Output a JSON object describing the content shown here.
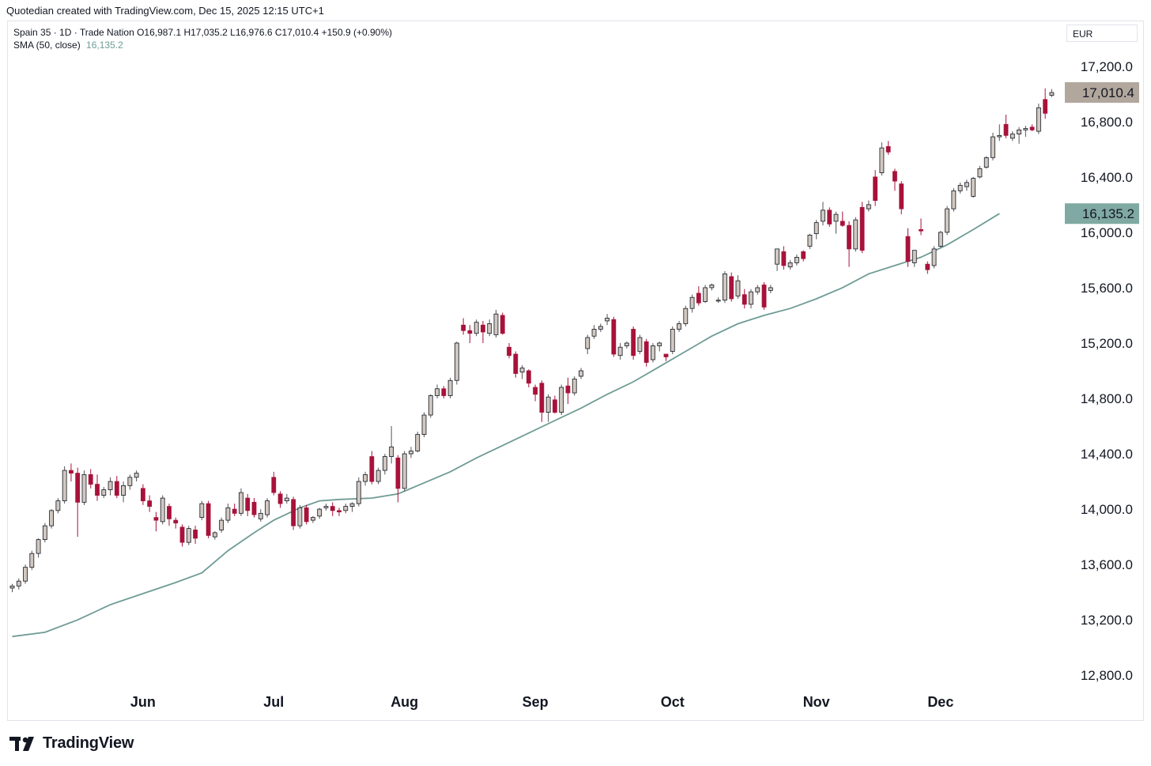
{
  "header": {
    "attribution": "Quotedian created with TradingView.com, Dec 15, 2025 12:15 UTC+1"
  },
  "legend": {
    "symbol_line": "Spain 35 · 1D · Trade Nation  O16,987.1  H17,035.2  L16,976.6  C17,010.4  +150.9 (+0.90%)",
    "sma_label": "SMA (50, close)",
    "sma_value": "16,135.2"
  },
  "currency": "EUR",
  "footer": {
    "brand": "TradingView"
  },
  "colors": {
    "up_body": "#d1c8c0",
    "down_body": "#a8123a",
    "sma": "#6f9b95",
    "last_label_bg": "#b2a79d",
    "sma_label_bg": "#7fa9a2"
  },
  "chart_data": {
    "type": "candlestick",
    "title": "Spain 35 · 1D",
    "ylim": [
      12550,
      17530
    ],
    "y_ticks": [
      17200,
      16800,
      16400,
      16000,
      15600,
      15200,
      14800,
      14400,
      14000,
      13600,
      13200,
      12800
    ],
    "y_tick_labels": [
      "17,200.0",
      "16,800.0",
      "16,400.0",
      "16,000.0",
      "15,600.0",
      "15,200.0",
      "14,800.0",
      "14,400.0",
      "14,000.0",
      "13,600.0",
      "13,200.0",
      "12,800.0"
    ],
    "x_labels": [
      {
        "label": "Jun",
        "bar": 20
      },
      {
        "label": "Jul",
        "bar": 40
      },
      {
        "label": "Aug",
        "bar": 60
      },
      {
        "label": "Sep",
        "bar": 80
      },
      {
        "label": "Oct",
        "bar": 101
      },
      {
        "label": "Nov",
        "bar": 123
      },
      {
        "label": "Dec",
        "bar": 142
      }
    ],
    "candles": [
      [
        13430,
        13460,
        13400,
        13445
      ],
      [
        13445,
        13500,
        13420,
        13480
      ],
      [
        13480,
        13600,
        13460,
        13580
      ],
      [
        13580,
        13700,
        13560,
        13680
      ],
      [
        13680,
        13790,
        13650,
        13780
      ],
      [
        13780,
        13900,
        13760,
        13880
      ],
      [
        13880,
        14000,
        13860,
        13990
      ],
      [
        13990,
        14080,
        13970,
        14060
      ],
      [
        14060,
        14310,
        14040,
        14280
      ],
      [
        14280,
        14330,
        14200,
        14260
      ],
      [
        14260,
        14300,
        13800,
        14050
      ],
      [
        14050,
        14280,
        14030,
        14250
      ],
      [
        14250,
        14290,
        14150,
        14180
      ],
      [
        14180,
        14250,
        14060,
        14100
      ],
      [
        14100,
        14160,
        14080,
        14140
      ],
      [
        14140,
        14230,
        14100,
        14200
      ],
      [
        14200,
        14240,
        14080,
        14100
      ],
      [
        14100,
        14200,
        14050,
        14170
      ],
      [
        14170,
        14250,
        14140,
        14230
      ],
      [
        14230,
        14280,
        14200,
        14260
      ],
      [
        14150,
        14180,
        14030,
        14060
      ],
      [
        14060,
        14100,
        13980,
        14020
      ],
      [
        13940,
        13980,
        13840,
        13920
      ],
      [
        13910,
        14100,
        13890,
        14080
      ],
      [
        14020,
        14040,
        13880,
        13930
      ],
      [
        13920,
        13940,
        13860,
        13900
      ],
      [
        13870,
        13890,
        13730,
        13760
      ],
      [
        13760,
        13880,
        13740,
        13860
      ],
      [
        13850,
        13880,
        13750,
        13790
      ],
      [
        13940,
        14060,
        13920,
        14040
      ],
      [
        14040,
        14060,
        13790,
        13810
      ],
      [
        13800,
        13840,
        13780,
        13830
      ],
      [
        13850,
        13940,
        13830,
        13920
      ],
      [
        13920,
        14040,
        13900,
        14010
      ],
      [
        14000,
        14040,
        13950,
        13970
      ],
      [
        13970,
        14150,
        13950,
        14120
      ],
      [
        14080,
        14110,
        13950,
        13990
      ],
      [
        14050,
        14080,
        13940,
        13960
      ],
      [
        13930,
        14000,
        13910,
        13970
      ],
      [
        13960,
        14080,
        13940,
        14060
      ],
      [
        14230,
        14270,
        14100,
        14120
      ],
      [
        14110,
        14130,
        14010,
        14040
      ],
      [
        14060,
        14110,
        14040,
        14080
      ],
      [
        14070,
        14090,
        13850,
        13880
      ],
      [
        13880,
        14030,
        13860,
        14010
      ],
      [
        14010,
        14030,
        13890,
        13910
      ],
      [
        13920,
        13950,
        13900,
        13940
      ],
      [
        13950,
        14010,
        13930,
        14000
      ],
      [
        14010,
        14040,
        13990,
        14020
      ],
      [
        14020,
        14050,
        13950,
        13990
      ],
      [
        13990,
        14010,
        13950,
        13980
      ],
      [
        13990,
        14040,
        13970,
        14020
      ],
      [
        14020,
        14050,
        13980,
        14040
      ],
      [
        14040,
        14230,
        14020,
        14200
      ],
      [
        14200,
        14270,
        14170,
        14250
      ],
      [
        14380,
        14420,
        14180,
        14200
      ],
      [
        14200,
        14300,
        14180,
        14280
      ],
      [
        14280,
        14400,
        14250,
        14380
      ],
      [
        14380,
        14600,
        14330,
        14450
      ],
      [
        14370,
        14390,
        14050,
        14150
      ],
      [
        14150,
        14420,
        14130,
        14400
      ],
      [
        14400,
        14450,
        14370,
        14420
      ],
      [
        14420,
        14560,
        14410,
        14540
      ],
      [
        14540,
        14700,
        14520,
        14680
      ],
      [
        14680,
        14830,
        14660,
        14820
      ],
      [
        14820,
        14900,
        14800,
        14870
      ],
      [
        14870,
        14890,
        14800,
        14820
      ],
      [
        14820,
        14950,
        14800,
        14930
      ],
      [
        14930,
        15210,
        14900,
        15200
      ],
      [
        15330,
        15380,
        15260,
        15290
      ],
      [
        15290,
        15330,
        15200,
        15270
      ],
      [
        15270,
        15370,
        15250,
        15350
      ],
      [
        15330,
        15360,
        15200,
        15280
      ],
      [
        15270,
        15370,
        15250,
        15340
      ],
      [
        15260,
        15440,
        15240,
        15410
      ],
      [
        15400,
        15420,
        15260,
        15270
      ],
      [
        15170,
        15200,
        15090,
        15110
      ],
      [
        15120,
        15140,
        14950,
        14980
      ],
      [
        14990,
        15040,
        14940,
        15020
      ],
      [
        15000,
        15010,
        14880,
        14910
      ],
      [
        14880,
        14900,
        14780,
        14830
      ],
      [
        14910,
        14930,
        14630,
        14700
      ],
      [
        14700,
        14830,
        14630,
        14810
      ],
      [
        14790,
        14820,
        14690,
        14700
      ],
      [
        14700,
        14900,
        14680,
        14880
      ],
      [
        14890,
        14950,
        14760,
        14840
      ],
      [
        14840,
        14960,
        14820,
        14940
      ],
      [
        14960,
        15020,
        14940,
        15000
      ],
      [
        15160,
        15260,
        15120,
        15240
      ],
      [
        15250,
        15330,
        15230,
        15300
      ],
      [
        15300,
        15340,
        15280,
        15320
      ],
      [
        15360,
        15410,
        15330,
        15380
      ],
      [
        15370,
        15390,
        15100,
        15120
      ],
      [
        15110,
        15200,
        15080,
        15170
      ],
      [
        15180,
        15210,
        15160,
        15200
      ],
      [
        15300,
        15320,
        15080,
        15110
      ],
      [
        15140,
        15260,
        15120,
        15240
      ],
      [
        15210,
        15230,
        15030,
        15060
      ],
      [
        15080,
        15200,
        15060,
        15180
      ],
      [
        15180,
        15210,
        15140,
        15200
      ],
      [
        15120,
        15120,
        15070,
        15100
      ],
      [
        15140,
        15320,
        15120,
        15300
      ],
      [
        15300,
        15360,
        15280,
        15340
      ],
      [
        15340,
        15470,
        15320,
        15450
      ],
      [
        15450,
        15550,
        15420,
        15530
      ],
      [
        15560,
        15610,
        15470,
        15490
      ],
      [
        15500,
        15620,
        15490,
        15600
      ],
      [
        15600,
        15630,
        15580,
        15620
      ],
      [
        15510,
        15530,
        15490,
        15510
      ],
      [
        15510,
        15720,
        15490,
        15700
      ],
      [
        15680,
        15710,
        15500,
        15520
      ],
      [
        15540,
        15690,
        15520,
        15650
      ],
      [
        15550,
        15590,
        15450,
        15480
      ],
      [
        15480,
        15590,
        15450,
        15570
      ],
      [
        15570,
        15620,
        15550,
        15600
      ],
      [
        15620,
        15640,
        15440,
        15460
      ],
      [
        15580,
        15620,
        15560,
        15600
      ],
      [
        15770,
        15880,
        15720,
        15880
      ],
      [
        15860,
        15900,
        15730,
        15760
      ],
      [
        15750,
        15800,
        15730,
        15780
      ],
      [
        15780,
        15840,
        15760,
        15820
      ],
      [
        15860,
        15870,
        15790,
        15810
      ],
      [
        15900,
        15990,
        15880,
        15980
      ],
      [
        15990,
        16090,
        15950,
        16070
      ],
      [
        16080,
        16220,
        16050,
        16160
      ],
      [
        16160,
        16180,
        16040,
        16060
      ],
      [
        16080,
        16150,
        15990,
        16130
      ],
      [
        16080,
        16150,
        16040,
        16050
      ],
      [
        16050,
        16080,
        15750,
        15880
      ],
      [
        15880,
        16110,
        15860,
        16090
      ],
      [
        16180,
        16220,
        15850,
        15870
      ],
      [
        16170,
        16230,
        16150,
        16200
      ],
      [
        16400,
        16450,
        16190,
        16230
      ],
      [
        16430,
        16650,
        16410,
        16610
      ],
      [
        16620,
        16660,
        16560,
        16580
      ],
      [
        16440,
        16460,
        16300,
        16370
      ],
      [
        16350,
        16370,
        16130,
        16170
      ],
      [
        15970,
        16030,
        15750,
        15790
      ],
      [
        15780,
        15870,
        15750,
        15870
      ],
      [
        16020,
        16100,
        15980,
        16010
      ],
      [
        15770,
        15790,
        15700,
        15730
      ],
      [
        15760,
        15900,
        15740,
        15880
      ],
      [
        15900,
        16010,
        15890,
        16000
      ],
      [
        16000,
        16190,
        15980,
        16170
      ],
      [
        16170,
        16320,
        16150,
        16300
      ],
      [
        16300,
        16360,
        16280,
        16340
      ],
      [
        16330,
        16380,
        16300,
        16360
      ],
      [
        16260,
        16400,
        16250,
        16390
      ],
      [
        16400,
        16480,
        16390,
        16460
      ],
      [
        16470,
        16550,
        16460,
        16540
      ],
      [
        16540,
        16720,
        16520,
        16690
      ],
      [
        16690,
        16780,
        16660,
        16700
      ],
      [
        16780,
        16850,
        16680,
        16700
      ],
      [
        16680,
        16730,
        16660,
        16710
      ],
      [
        16710,
        16760,
        16640,
        16740
      ],
      [
        16740,
        16770,
        16690,
        16750
      ],
      [
        16760,
        16780,
        16730,
        16740
      ],
      [
        16730,
        16930,
        16710,
        16900
      ],
      [
        16960,
        17040,
        16820,
        16860
      ],
      [
        16990,
        17035,
        16977,
        17010
      ]
    ],
    "sma": {
      "name": "SMA (50, close)",
      "last_value": 16135.2,
      "points": [
        [
          0,
          13080
        ],
        [
          5,
          13110
        ],
        [
          10,
          13200
        ],
        [
          15,
          13310
        ],
        [
          20,
          13390
        ],
        [
          25,
          13470
        ],
        [
          29,
          13540
        ],
        [
          33,
          13700
        ],
        [
          37,
          13830
        ],
        [
          40,
          13920
        ],
        [
          44,
          14010
        ],
        [
          47,
          14060
        ],
        [
          50,
          14070
        ],
        [
          55,
          14080
        ],
        [
          59,
          14110
        ],
        [
          63,
          14190
        ],
        [
          67,
          14270
        ],
        [
          71,
          14370
        ],
        [
          75,
          14460
        ],
        [
          79,
          14550
        ],
        [
          83,
          14640
        ],
        [
          87,
          14730
        ],
        [
          91,
          14830
        ],
        [
          95,
          14920
        ],
        [
          99,
          15030
        ],
        [
          103,
          15140
        ],
        [
          107,
          15250
        ],
        [
          111,
          15340
        ],
        [
          115,
          15400
        ],
        [
          119,
          15450
        ],
        [
          123,
          15520
        ],
        [
          127,
          15600
        ],
        [
          131,
          15700
        ],
        [
          135,
          15760
        ],
        [
          139,
          15820
        ],
        [
          143,
          15910
        ],
        [
          147,
          16020
        ],
        [
          151,
          16135.2
        ]
      ]
    },
    "last_price": {
      "value": 17010.4,
      "label": "17,010.4"
    },
    "sma_price_label": "16,135.2"
  }
}
